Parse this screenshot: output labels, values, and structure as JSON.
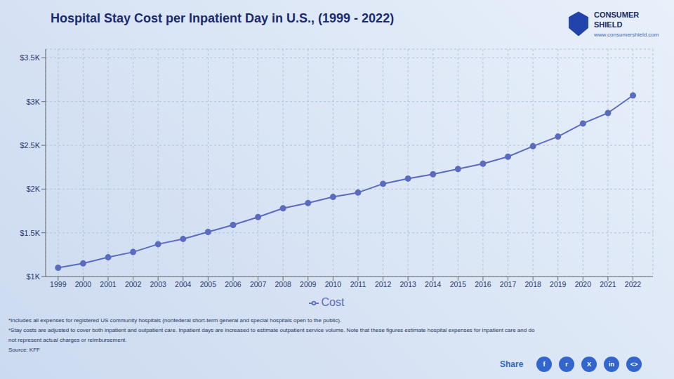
{
  "chart_data": {
    "type": "line",
    "title": "Hospital Stay Cost per Inpatient Day in U.S., (1999 - 2022)",
    "x": [
      1999,
      2000,
      2001,
      2002,
      2003,
      2004,
      2005,
      2006,
      2007,
      2008,
      2009,
      2010,
      2011,
      2012,
      2013,
      2014,
      2015,
      2016,
      2017,
      2018,
      2019,
      2020,
      2021,
      2022
    ],
    "series": [
      {
        "name": "Cost",
        "color": "#5b6bbf",
        "marker": "circle",
        "values": [
          1100,
          1150,
          1220,
          1280,
          1370,
          1430,
          1510,
          1590,
          1680,
          1780,
          1840,
          1910,
          1960,
          2060,
          2120,
          2170,
          2230,
          2290,
          2370,
          2490,
          2600,
          2750,
          2870,
          3070
        ]
      }
    ],
    "xlim": [
      1998.5,
      2022.8
    ],
    "xticks": [
      1999,
      2000,
      2001,
      2002,
      2003,
      2004,
      2005,
      2006,
      2007,
      2008,
      2009,
      2010,
      2011,
      2012,
      2013,
      2014,
      2015,
      2016,
      2017,
      2018,
      2019,
      2020,
      2021,
      2022
    ],
    "ylim": [
      1000,
      3600
    ],
    "yticks": [
      {
        "value": 1000,
        "label": "$1K"
      },
      {
        "value": 1500,
        "label": "$1.5K"
      },
      {
        "value": 2000,
        "label": "$2K"
      },
      {
        "value": 2500,
        "label": "$2.5K"
      },
      {
        "value": 3000,
        "label": "$3K"
      },
      {
        "value": 3500,
        "label": "$3.5K"
      }
    ],
    "grid": true,
    "legend": "bottom",
    "annotations": [
      "*Includes all expenses for registered US community hospitals (nonfederal short-term general and special hospitals open to the public).",
      "*Stay costs are adjusted to cover both inpatient and outpatient care. Inpatient days are increased to estimate outpatient service volume. Note that these figures estimate hospital expenses for inpatient care and do",
      "not represent actual charges or reimbursement.",
      "Source: KFF",
      "CONSUMER\nSHIELD",
      "www.consumershield.com",
      "Share",
      "f",
      "r",
      "X",
      "in",
      "<>"
    ]
  }
}
